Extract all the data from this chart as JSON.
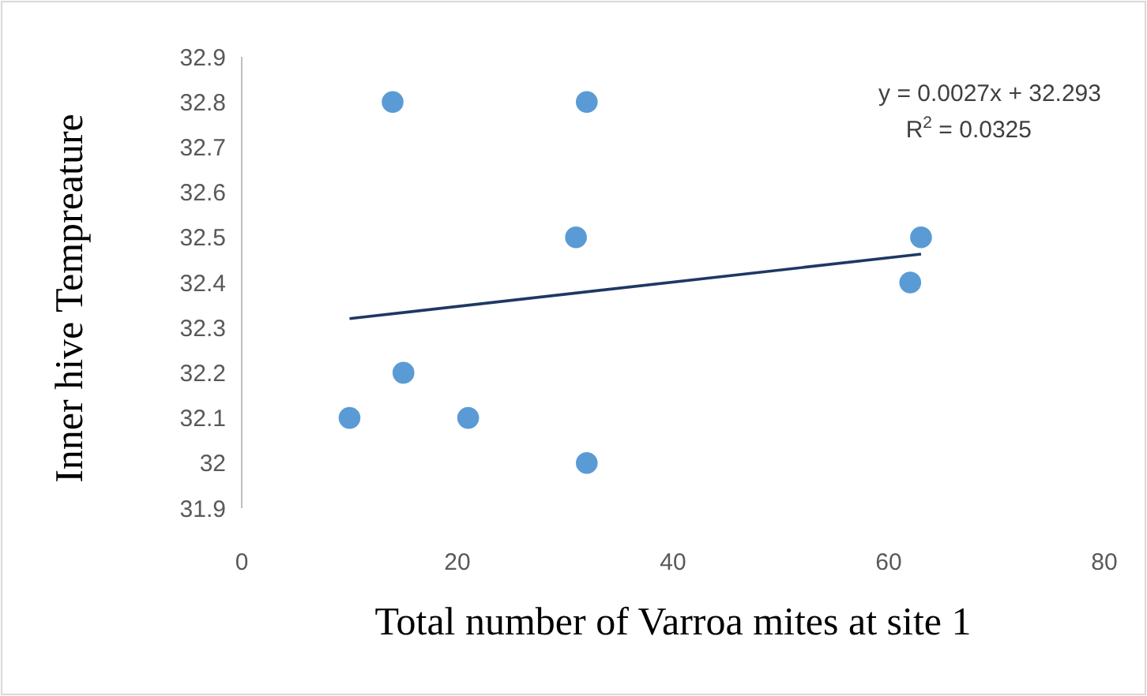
{
  "chart_data": {
    "type": "scatter",
    "xlabel": "Total number of Varroa mites at site 1",
    "ylabel": "Inner hive Tempreature",
    "xlim": [
      0,
      80
    ],
    "ylim": [
      31.9,
      32.9
    ],
    "xticks": [
      0,
      20,
      40,
      60,
      80
    ],
    "yticks": [
      31.9,
      32,
      32.1,
      32.2,
      32.3,
      32.4,
      32.5,
      32.6,
      32.7,
      32.8,
      32.9
    ],
    "grid": false,
    "series": [
      {
        "color": "#5b9bd5",
        "marker": "circle",
        "x": [
          10,
          14,
          15,
          21,
          31,
          32,
          32,
          62,
          63
        ],
        "values": [
          32.1,
          32.8,
          32.2,
          32.1,
          32.5,
          32.8,
          32.0,
          32.4,
          32.5
        ]
      },
      {
        "type": "line",
        "color": "#1f3864",
        "line_style": "solid",
        "x": [
          10,
          63
        ],
        "values": [
          32.32,
          32.463
        ]
      }
    ],
    "annotations": [
      "y = 0.0027x + 32.293",
      "R$^{2}$ = 0.0325"
    ]
  }
}
